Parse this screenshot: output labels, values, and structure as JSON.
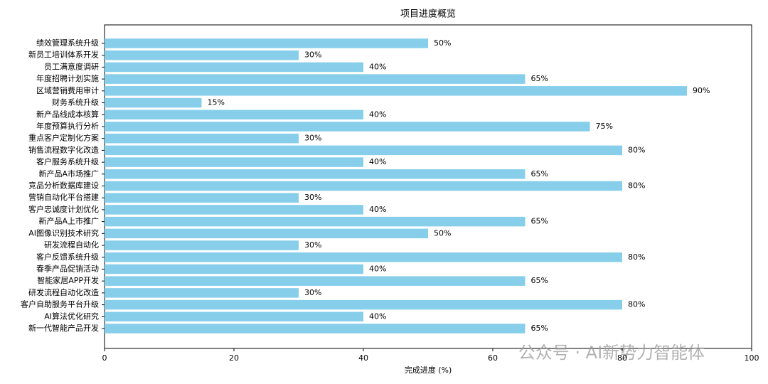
{
  "chart_data": {
    "type": "barh",
    "title": "项目进度概览",
    "x_label": "完成进度 (%)",
    "categories": [
      "绩效管理系统升级",
      "新员工培训体系开发",
      "员工满意度调研",
      "年度招聘计划实施",
      "区域营销费用审计",
      "财务系统升级",
      "新产品线成本核算",
      "年度预算执行分析",
      "重点客户定制化方案",
      "销售流程数字化改造",
      "客户服务系统升级",
      "新产品A市场推广",
      "竞品分析数据库建设",
      "营销自动化平台搭建",
      "客户忠诚度计划优化",
      "新产品A上市推广",
      "AI图像识别技术研究",
      "研发流程自动化",
      "客户反馈系统升级",
      "春季产品促销活动",
      "智能家居APP开发",
      "研发流程自动化改造",
      "客户自助服务平台升级",
      "AI算法优化研究",
      "新一代智能产品开发"
    ],
    "values": [
      50,
      30,
      40,
      65,
      90,
      15,
      40,
      75,
      30,
      80,
      40,
      65,
      80,
      30,
      40,
      65,
      50,
      30,
      80,
      40,
      65,
      30,
      80,
      40,
      65
    ],
    "value_labels": [
      "50%",
      "30%",
      "40%",
      "65%",
      "90%",
      "15%",
      "40%",
      "75%",
      "30%",
      "80%",
      "40%",
      "65%",
      "80%",
      "30%",
      "40%",
      "65%",
      "50%",
      "30%",
      "80%",
      "40%",
      "65%",
      "30%",
      "80%",
      "40%",
      "65%"
    ],
    "color": "#87ceeb",
    "xlim": [
      0,
      100
    ],
    "xticks": [
      0,
      20,
      40,
      60,
      80,
      100
    ],
    "watermark": "公众号 · AI新势力智能体"
  }
}
